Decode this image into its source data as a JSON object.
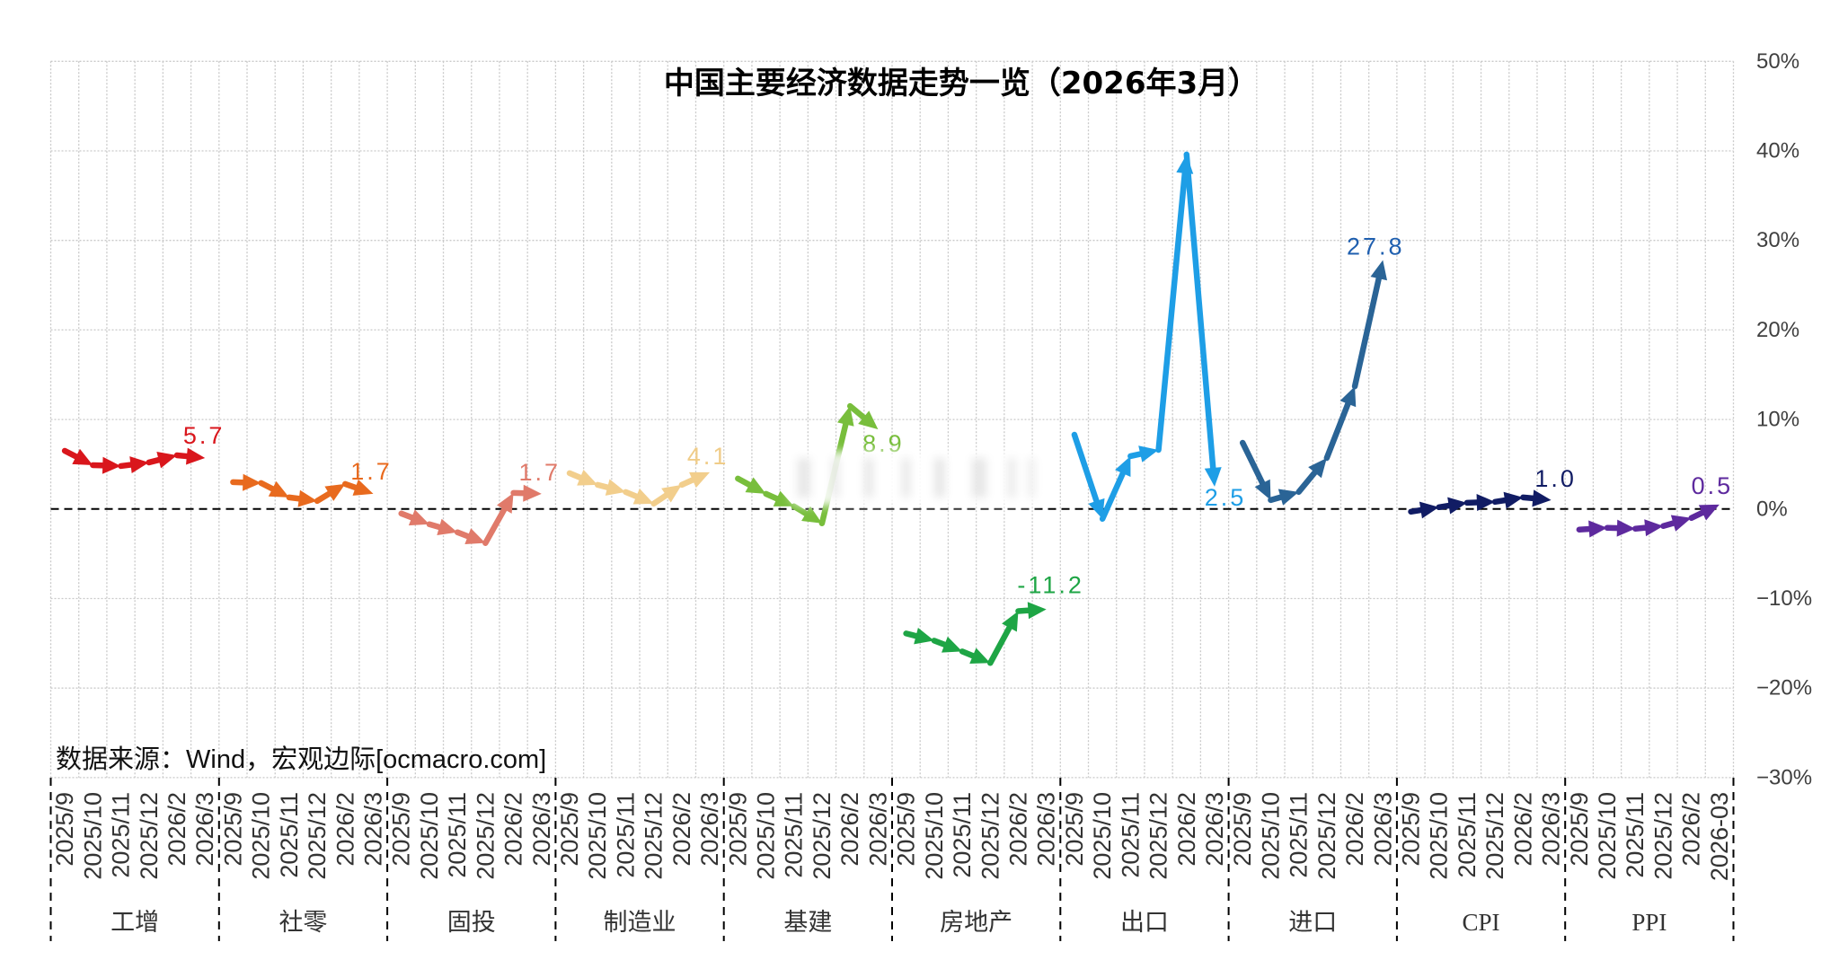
{
  "chart_data": {
    "type": "line",
    "title": "中国主要经济数据走势一览（2026年3月）",
    "source": "数据来源：Wind，宏观边际[ocmacro.com]",
    "xlabel": "",
    "ylabel": "",
    "ylim": [
      -30,
      50
    ],
    "grid": true,
    "legend": null,
    "zero_line": "dashed",
    "y_axis": {
      "position": "right",
      "ticks": [
        {
          "value": 50,
          "label": "50%"
        },
        {
          "value": 40,
          "label": "40%"
        },
        {
          "value": 30,
          "label": "30%"
        },
        {
          "value": 20,
          "label": "20%"
        },
        {
          "value": 10,
          "label": "10%"
        },
        {
          "value": 0,
          "label": "0%"
        },
        {
          "value": -10,
          "label": "−10%"
        },
        {
          "value": -20,
          "label": "−20%"
        },
        {
          "value": -30,
          "label": "−30%"
        }
      ]
    },
    "series": [
      {
        "name": "工增",
        "color": "#D9161C",
        "label_color": "#D9161C",
        "x": [
          "2025/9",
          "2025/10",
          "2025/11",
          "2025/12",
          "2026/2",
          "2026/3"
        ],
        "values": [
          6.5,
          4.9,
          4.8,
          5.2,
          6.0,
          5.7
        ],
        "last_label": "5.7",
        "label_offset": [
          -1,
          -25
        ]
      },
      {
        "name": "社零",
        "color": "#E86A1E",
        "label_color": "#E86A1E",
        "x": [
          "2025/9",
          "2025/10",
          "2025/11",
          "2025/12",
          "2026/2",
          "2026/3"
        ],
        "values": [
          3.0,
          2.9,
          1.3,
          0.9,
          2.8,
          1.7
        ],
        "last_label": "1.7",
        "label_offset": [
          -2,
          -25
        ]
      },
      {
        "name": "固投",
        "color": "#E07A6A",
        "label_color": "#E07A6A",
        "x": [
          "2025/9",
          "2025/10",
          "2025/11",
          "2025/12",
          "2026/2",
          "2026/3"
        ],
        "values": [
          -0.5,
          -1.7,
          -2.6,
          -3.8,
          1.8,
          1.7
        ],
        "last_label": "1.7",
        "label_offset": [
          -2,
          -24
        ]
      },
      {
        "name": "制造业",
        "color": "#F2CE8C",
        "label_color": "#F0CC88",
        "x": [
          "2025/9",
          "2025/10",
          "2025/11",
          "2025/12",
          "2026/2",
          "2026/3"
        ],
        "values": [
          4.0,
          2.7,
          1.9,
          0.6,
          2.7,
          4.1
        ],
        "last_label": "4.1",
        "label_offset": [
          -2,
          -18
        ]
      },
      {
        "name": "基建",
        "color": "#78BE3C",
        "label_color": "#78BE3C",
        "x": [
          "2025/9",
          "2025/10",
          "2025/11",
          "2025/12",
          "2026/2",
          "2026/3"
        ],
        "values": [
          3.4,
          1.7,
          0.3,
          -1.6,
          11.5,
          8.9
        ],
        "last_label": "8.9",
        "label_offset": [
          6,
          16
        ]
      },
      {
        "name": "房地产",
        "color": "#1EA545",
        "label_color": "#1EA545",
        "x": [
          "2025/9",
          "2025/10",
          "2025/11",
          "2025/12",
          "2026/2",
          "2026/3"
        ],
        "values": [
          -13.9,
          -14.7,
          -15.9,
          -17.2,
          -11.4,
          -11.2
        ],
        "last_label": "-11.2",
        "label_offset": [
          5,
          -27
        ]
      },
      {
        "name": "出口",
        "color": "#1E9EE6",
        "label_color": "#1E9EE6",
        "x": [
          "2025/9",
          "2025/10",
          "2025/11",
          "2025/12",
          "2026/2",
          "2026/3"
        ],
        "values": [
          8.3,
          -1.1,
          5.9,
          6.6,
          39.6,
          2.5
        ],
        "last_label": "2.5",
        "label_offset": [
          12,
          12
        ]
      },
      {
        "name": "进口",
        "color": "#2A6496",
        "label_color": "#1F5FAF",
        "x": [
          "2025/9",
          "2025/10",
          "2025/11",
          "2025/12",
          "2026/2",
          "2026/3"
        ],
        "values": [
          7.4,
          1.0,
          1.9,
          5.7,
          13.7,
          27.8
        ],
        "last_label": "27.8",
        "label_offset": [
          -8,
          -15
        ]
      },
      {
        "name": "CPI",
        "color": "#111C64",
        "label_color": "#111C64",
        "x": [
          "2025/9",
          "2025/10",
          "2025/11",
          "2025/12",
          "2026/2",
          "2026/3"
        ],
        "values": [
          -0.3,
          0.2,
          0.7,
          0.8,
          1.3,
          1.0
        ],
        "last_label": "1.0",
        "label_offset": [
          5,
          -24
        ]
      },
      {
        "name": "PPI",
        "color": "#5E2A9E",
        "label_color": "#5E2A9E",
        "x": [
          "2025/9",
          "2025/10",
          "2025/11",
          "2025/12",
          "2026/2",
          "2026-03"
        ],
        "values": [
          -2.3,
          -2.1,
          -2.2,
          -1.9,
          -1.0,
          0.5
        ],
        "last_label": "0.5",
        "label_offset": [
          -8,
          -21
        ]
      }
    ]
  }
}
